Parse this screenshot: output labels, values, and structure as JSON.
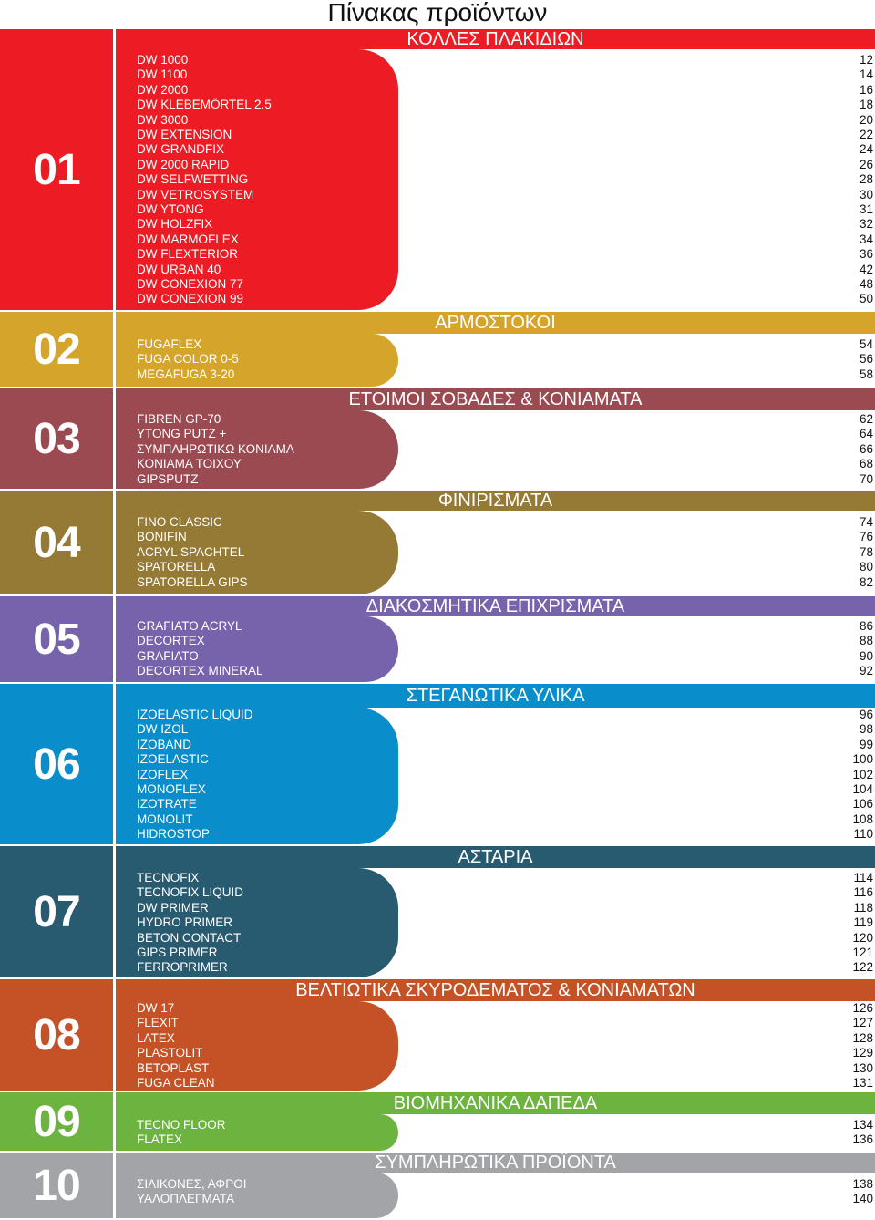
{
  "title": "Πίνακας προϊόντων",
  "sections": [
    {
      "number": "01",
      "heading": "ΚΟΛΛΕΣ ΠΛΑΚΙΔΙΩΝ",
      "color": "#ED1C24",
      "items": [
        {
          "name": "DW 1000",
          "page": "12"
        },
        {
          "name": "DW 1100",
          "page": "14"
        },
        {
          "name": "DW 2000",
          "page": "16"
        },
        {
          "name": "DW KLEBEMÖRTEL 2.5",
          "page": "18"
        },
        {
          "name": "DW 3000",
          "page": "20"
        },
        {
          "name": "DW EXTENSION",
          "page": "22"
        },
        {
          "name": "DW GRANDFIX",
          "page": "24"
        },
        {
          "name": "DW 2000 RAPID",
          "page": "26"
        },
        {
          "name": "DW SELFWETTING",
          "page": "28"
        },
        {
          "name": "DW VETROSYSTEM",
          "page": "30"
        },
        {
          "name": "DW YTONG",
          "page": "31"
        },
        {
          "name": "DW HOLZFIX",
          "page": "32"
        },
        {
          "name": "DW MARMOFLEX",
          "page": "34"
        },
        {
          "name": "DW FLEXTERIOR",
          "page": "36"
        },
        {
          "name": "DW URBAN 40",
          "page": "42"
        },
        {
          "name": "DW CONEXION 77",
          "page": "48"
        },
        {
          "name": "DW CONEXION 99",
          "page": "50"
        }
      ]
    },
    {
      "number": "02",
      "heading": "ΑΡΜΟΣΤΟΚΟΙ",
      "color": "#D4A52A",
      "items": [
        {
          "name": "FUGAFLEX",
          "page": "54"
        },
        {
          "name": "FUGA COLOR 0-5",
          "page": "56"
        },
        {
          "name": "MEGAFUGA 3-20",
          "page": "58"
        }
      ]
    },
    {
      "number": "03",
      "heading": "ΕΤΟΙΜΟΙ ΣΟΒΑΔΕΣ & ΚΟΝΙΑΜΑΤΑ",
      "color": "#9B4A52",
      "items": [
        {
          "name": "FIBREN GP-70",
          "page": "62"
        },
        {
          "name": "YTONG PUTZ +",
          "page": "64"
        },
        {
          "name": "ΣΥΜΠΛΗΡΩΤΙΚΩ   ΚΟΝΙΑΜΑ",
          "page": "66"
        },
        {
          "name": "ΚΟΝΙΑΜΑ ΤΟΙΧΟΥ",
          "page": "68"
        },
        {
          "name": "GIPSPUTZ",
          "page": "70"
        }
      ]
    },
    {
      "number": "04",
      "heading": "ΦΙΝΙΡΙΣΜΑΤΑ",
      "color": "#957A35",
      "items": [
        {
          "name": "FINO CLASSIC",
          "page": "74"
        },
        {
          "name": "BONIFIN",
          "page": "76"
        },
        {
          "name": "ACRYL SPACHTEL",
          "page": "78"
        },
        {
          "name": "SPATORELLA",
          "page": "80"
        },
        {
          "name": "SPATORELLA GIPS",
          "page": "82"
        }
      ]
    },
    {
      "number": "05",
      "heading": "ΔΙΑΚΟΣΜΗΤΙΚΑ ΕΠΙΧΡΙΣΜΑΤΑ",
      "color": "#7762AC",
      "items": [
        {
          "name": "GRAFIATO ACRYL",
          "page": "86"
        },
        {
          "name": "DECORTEX",
          "page": "88"
        },
        {
          "name": "GRAFIATO",
          "page": "90"
        },
        {
          "name": "DECORTEX MINERAL",
          "page": "92"
        }
      ]
    },
    {
      "number": "06",
      "heading": "ΣΤΕΓΑΝΩΤΙΚΑ ΥΛΙΚΑ",
      "color": "#0A8ECB",
      "items": [
        {
          "name": "IZOELASTIC LIQUID",
          "page": "96"
        },
        {
          "name": "DW IZOL",
          "page": "98"
        },
        {
          "name": "IZOBAND",
          "page": "99"
        },
        {
          "name": "IZOELASTIC",
          "page": "100"
        },
        {
          "name": "IZOFLEX",
          "page": "102"
        },
        {
          "name": "MONOFLEX",
          "page": "104"
        },
        {
          "name": "IZOTRATE",
          "page": "106"
        },
        {
          "name": "MONOLIT",
          "page": "108"
        },
        {
          "name": "HIDROSTOP",
          "page": "110"
        }
      ]
    },
    {
      "number": "07",
      "heading": "ΑΣΤΑΡΙΑ",
      "color": "#285A70",
      "items": [
        {
          "name": "TECNOFIX",
          "page": "114"
        },
        {
          "name": "TECNOFIX LIQUID",
          "page": "116"
        },
        {
          "name": "DW PRIMER",
          "page": "118"
        },
        {
          "name": "HYDRO PRIMER",
          "page": "119"
        },
        {
          "name": "BETON CONTACT",
          "page": "120"
        },
        {
          "name": "GIPS PRIMER",
          "page": "121"
        },
        {
          "name": "FERROPRIMER",
          "page": "122"
        }
      ]
    },
    {
      "number": "08",
      "heading": "ΒΕΛΤΙΩΤΙΚΑ ΣΚΥΡΟΔΕΜΑΤΟΣ & ΚΟΝΙΑΜΑΤΩΝ",
      "color": "#C55126",
      "items": [
        {
          "name": "DW 17",
          "page": "126"
        },
        {
          "name": "FLEXIT",
          "page": "127"
        },
        {
          "name": "LATEX",
          "page": "128"
        },
        {
          "name": "PLASTOLIT",
          "page": "129"
        },
        {
          "name": "BETOPLAST",
          "page": "130"
        },
        {
          "name": "FUGA CLEAN",
          "page": "131"
        }
      ]
    },
    {
      "number": "09",
      "heading": "ΒΙΟΜΗΧΑΝΙΚΑ ΔΑΠΕΔΑ",
      "color": "#6CB33F",
      "items": [
        {
          "name": "TECNO FLOOR",
          "page": "134"
        },
        {
          "name": "FLATEX",
          "page": "136"
        }
      ]
    },
    {
      "number": "10",
      "heading": "ΣΥΜΠΛΗΡΩΤΙΚΑ ΠΡΟΪΟΝΤΑ",
      "color": "#A2A4A7",
      "items": [
        {
          "name": "ΣΙΛΙΚΟΝΕΣ, ΑΦΡΟΙ",
          "page": "138"
        },
        {
          "name": "ΥΑΛΟΠΛΕΓΜΑΤΑ",
          "page": "140"
        }
      ]
    }
  ]
}
